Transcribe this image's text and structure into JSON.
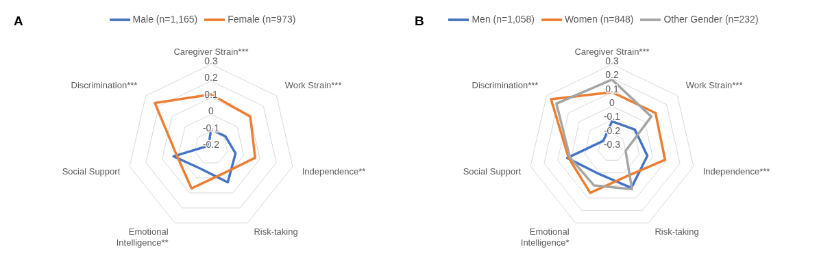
{
  "chart_data": [
    {
      "type": "radar",
      "title": "A",
      "categories": [
        "Caregiver Strain***",
        "Work Strain***",
        "Independence**",
        "Risk-taking",
        "Emotional Intelligence**",
        "Social Support",
        "Discrimination***"
      ],
      "ylim": [
        -0.2,
        0.3
      ],
      "yticks": [
        -0.2,
        -0.1,
        0,
        0.1,
        0.2,
        0.3
      ],
      "grid": true,
      "legend": "top",
      "series": [
        {
          "name": "Male (n=1,165)",
          "color": "#4472c4",
          "values": [
            -0.09,
            -0.09,
            -0.05,
            0.03,
            -0.06,
            0.03,
            -0.18
          ]
        },
        {
          "name": "Female (n=973)",
          "color": "#ed7d31",
          "values": [
            0.12,
            0.1,
            0.07,
            -0.03,
            0.07,
            0.01,
            0.23
          ]
        }
      ]
    },
    {
      "type": "radar",
      "title": "B",
      "categories": [
        "Caregiver Strain***",
        "Work Strain***",
        "Independence***",
        "Risk-taking",
        "Emotional Intelligence*",
        "Social Support",
        "Discrimination***"
      ],
      "ylim": [
        -0.3,
        0.3
      ],
      "yticks": [
        -0.3,
        -0.2,
        -0.1,
        0,
        0.1,
        0.2,
        0.3
      ],
      "grid": true,
      "legend": "top",
      "series": [
        {
          "name": "Men (n=1,058)",
          "color": "#4472c4",
          "values": [
            -0.11,
            -0.09,
            -0.04,
            0.02,
            -0.09,
            0.03,
            -0.22
          ]
        },
        {
          "name": "Women (n=848)",
          "color": "#ed7d31",
          "values": [
            0.1,
            0.1,
            0.09,
            -0.07,
            0.06,
            0.02,
            0.26
          ]
        },
        {
          "name": "Other Gender (n=232)",
          "color": "#a5a5a5",
          "values": [
            0.19,
            0.06,
            -0.2,
            0.03,
            0.0,
            0.01,
            0.21
          ]
        }
      ]
    }
  ]
}
